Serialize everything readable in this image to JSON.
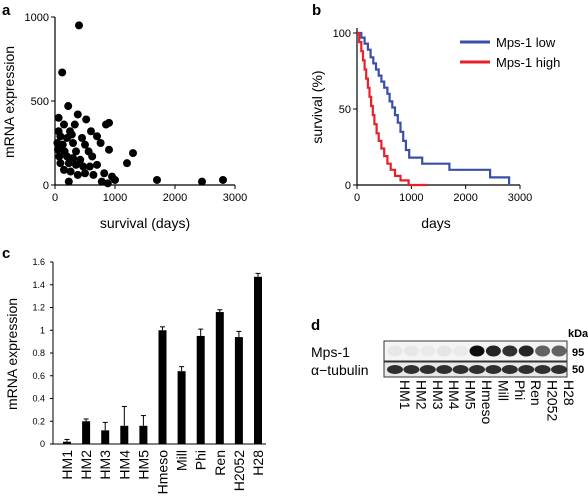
{
  "panels": {
    "a": "a",
    "b": "b",
    "c": "c",
    "d": "d"
  },
  "chart_data": [
    {
      "id": "a",
      "type": "scatter",
      "xlabel": "survival (days)",
      "ylabel": "mRNA expression",
      "xlim": [
        0,
        3000
      ],
      "ylim": [
        0,
        1000
      ],
      "xticks": [
        0,
        1000,
        2000,
        3000
      ],
      "yticks": [
        0,
        500,
        1000
      ],
      "color": "#000000",
      "points": [
        [
          400,
          950
        ],
        [
          120,
          670
        ],
        [
          220,
          470
        ],
        [
          380,
          420
        ],
        [
          60,
          400
        ],
        [
          150,
          360
        ],
        [
          330,
          360
        ],
        [
          520,
          390
        ],
        [
          850,
          360
        ],
        [
          900,
          370
        ],
        [
          60,
          320
        ],
        [
          250,
          320
        ],
        [
          600,
          320
        ],
        [
          90,
          290
        ],
        [
          200,
          280
        ],
        [
          280,
          300
        ],
        [
          450,
          280
        ],
        [
          700,
          290
        ],
        [
          40,
          250
        ],
        [
          130,
          240
        ],
        [
          300,
          250
        ],
        [
          500,
          240
        ],
        [
          760,
          250
        ],
        [
          50,
          210
        ],
        [
          160,
          200
        ],
        [
          350,
          200
        ],
        [
          560,
          200
        ],
        [
          900,
          210
        ],
        [
          1300,
          190
        ],
        [
          70,
          170
        ],
        [
          200,
          170
        ],
        [
          300,
          160
        ],
        [
          420,
          150
        ],
        [
          620,
          170
        ],
        [
          1200,
          130
        ],
        [
          90,
          130
        ],
        [
          230,
          130
        ],
        [
          350,
          120
        ],
        [
          470,
          110
        ],
        [
          580,
          110
        ],
        [
          700,
          120
        ],
        [
          150,
          90
        ],
        [
          260,
          80
        ],
        [
          380,
          60
        ],
        [
          500,
          70
        ],
        [
          640,
          60
        ],
        [
          820,
          70
        ],
        [
          950,
          50
        ],
        [
          1000,
          30
        ],
        [
          1700,
          30
        ],
        [
          2450,
          20
        ],
        [
          2800,
          30
        ],
        [
          230,
          20
        ],
        [
          780,
          20
        ],
        [
          880,
          10
        ]
      ]
    },
    {
      "id": "b",
      "type": "line",
      "xlabel": "days",
      "ylabel": "survival (%)",
      "xlim": [
        0,
        3000
      ],
      "ylim": [
        0,
        100
      ],
      "xticks": [
        0,
        1000,
        2000,
        3000
      ],
      "yticks": [
        0,
        50,
        100
      ],
      "legend_position": "top-right",
      "series": [
        {
          "name": "Mps-1 low",
          "color": "#3a4fa8",
          "steps": [
            [
              0,
              100
            ],
            [
              80,
              100
            ],
            [
              80,
              97
            ],
            [
              140,
              97
            ],
            [
              140,
              93
            ],
            [
              200,
              93
            ],
            [
              200,
              89
            ],
            [
              250,
              89
            ],
            [
              250,
              84
            ],
            [
              300,
              84
            ],
            [
              300,
              80
            ],
            [
              350,
              80
            ],
            [
              350,
              76
            ],
            [
              400,
              76
            ],
            [
              400,
              72
            ],
            [
              450,
              72
            ],
            [
              450,
              68
            ],
            [
              500,
              68
            ],
            [
              500,
              64
            ],
            [
              560,
              64
            ],
            [
              560,
              60
            ],
            [
              600,
              60
            ],
            [
              600,
              55
            ],
            [
              650,
              55
            ],
            [
              650,
              51
            ],
            [
              700,
              51
            ],
            [
              700,
              46
            ],
            [
              750,
              46
            ],
            [
              750,
              41
            ],
            [
              800,
              41
            ],
            [
              800,
              35
            ],
            [
              850,
              35
            ],
            [
              850,
              29
            ],
            [
              900,
              29
            ],
            [
              900,
              23
            ],
            [
              960,
              23
            ],
            [
              960,
              18
            ],
            [
              1200,
              18
            ],
            [
              1200,
              14
            ],
            [
              1700,
              14
            ],
            [
              1700,
              10
            ],
            [
              2450,
              10
            ],
            [
              2450,
              5
            ],
            [
              2800,
              5
            ],
            [
              2800,
              0
            ]
          ]
        },
        {
          "name": "Mps-1 high",
          "color": "#e8202a",
          "steps": [
            [
              0,
              100
            ],
            [
              40,
              100
            ],
            [
              40,
              94
            ],
            [
              80,
              94
            ],
            [
              80,
              88
            ],
            [
              110,
              88
            ],
            [
              110,
              82
            ],
            [
              140,
              82
            ],
            [
              140,
              76
            ],
            [
              170,
              76
            ],
            [
              170,
              70
            ],
            [
              200,
              70
            ],
            [
              200,
              64
            ],
            [
              230,
              64
            ],
            [
              230,
              58
            ],
            [
              260,
              58
            ],
            [
              260,
              52
            ],
            [
              290,
              52
            ],
            [
              290,
              46
            ],
            [
              320,
              46
            ],
            [
              320,
              40
            ],
            [
              360,
              40
            ],
            [
              360,
              34
            ],
            [
              400,
              34
            ],
            [
              400,
              29
            ],
            [
              450,
              29
            ],
            [
              450,
              24
            ],
            [
              500,
              24
            ],
            [
              500,
              19
            ],
            [
              560,
              19
            ],
            [
              560,
              14
            ],
            [
              620,
              14
            ],
            [
              620,
              10
            ],
            [
              700,
              10
            ],
            [
              700,
              6
            ],
            [
              800,
              6
            ],
            [
              800,
              3
            ],
            [
              950,
              3
            ],
            [
              950,
              0
            ],
            [
              1300,
              0
            ]
          ]
        }
      ]
    },
    {
      "id": "c",
      "type": "bar",
      "ylabel": "mRNA expression",
      "ylim": [
        0,
        1.6
      ],
      "yticks": [
        "0",
        "0.2",
        "0.4",
        "0.6",
        "0.8",
        "1",
        "1.2",
        "1.4",
        "1.6"
      ],
      "color": "#000000",
      "categories": [
        "HM1",
        "HM2",
        "HM3",
        "HM4",
        "HM5",
        "Hmeso",
        "Mill",
        "Phi",
        "Ren",
        "H2052",
        "H28"
      ],
      "values": [
        0.02,
        0.2,
        0.12,
        0.16,
        0.16,
        1.0,
        0.64,
        0.95,
        1.16,
        0.94,
        1.47
      ],
      "errors": [
        0.02,
        0.02,
        0.07,
        0.17,
        0.09,
        0.03,
        0.04,
        0.06,
        0.02,
        0.05,
        0.03
      ]
    }
  ],
  "blot": {
    "kda_label": "kDa",
    "rows": [
      {
        "label": "Mps-1",
        "kda": "95"
      },
      {
        "label": "α−tubulin",
        "kda": "50"
      }
    ],
    "lanes": [
      "HM1",
      "HM2",
      "HM3",
      "HM4",
      "HM5",
      "Hmeso",
      "Mill",
      "Phi",
      "Ren",
      "H2052",
      "H28"
    ],
    "mps1_intensity": [
      0.05,
      0.05,
      0.04,
      0.06,
      0.04,
      0.95,
      0.85,
      0.8,
      0.85,
      0.6,
      0.6
    ],
    "tubulin_intensity": [
      0.8,
      0.8,
      0.8,
      0.8,
      0.8,
      0.8,
      0.8,
      0.8,
      0.8,
      0.8,
      0.8
    ]
  }
}
